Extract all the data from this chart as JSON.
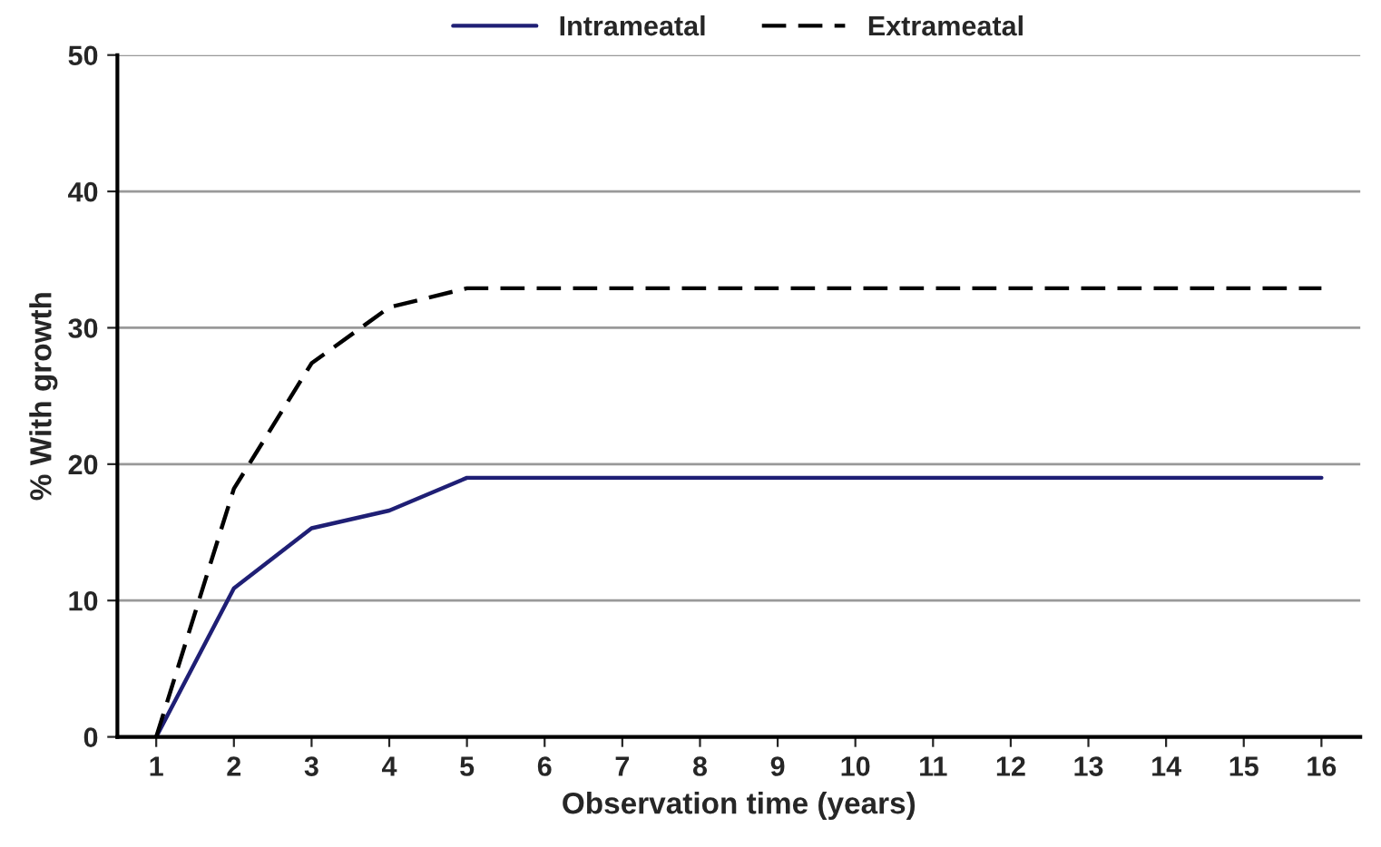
{
  "chart_data": {
    "type": "line",
    "xlabel": "Observation time (years)",
    "ylabel": "% With growth",
    "categories": [
      "1",
      "2",
      "3",
      "4",
      "5",
      "6",
      "7",
      "8",
      "9",
      "10",
      "11",
      "12",
      "13",
      "14",
      "15",
      "16"
    ],
    "series": [
      {
        "name": "Intrameatal",
        "color": "#1f1f75",
        "line_style": "solid",
        "values": [
          0,
          10.9,
          15.3,
          16.6,
          19,
          19,
          19,
          19,
          19,
          19,
          19,
          19,
          19,
          19,
          19,
          19
        ]
      },
      {
        "name": "Extrameatal",
        "color": "#000000",
        "line_style": "dashed",
        "values": [
          0,
          18.2,
          27.4,
          31.5,
          32.9,
          32.9,
          32.9,
          32.9,
          32.9,
          32.9,
          32.9,
          32.9,
          32.9,
          32.9,
          32.9,
          32.9
        ]
      }
    ],
    "ylim": [
      0,
      50
    ],
    "yticks": [
      0,
      10,
      20,
      30,
      40,
      50
    ],
    "grid": "y",
    "legend": "top",
    "marker": "none"
  }
}
